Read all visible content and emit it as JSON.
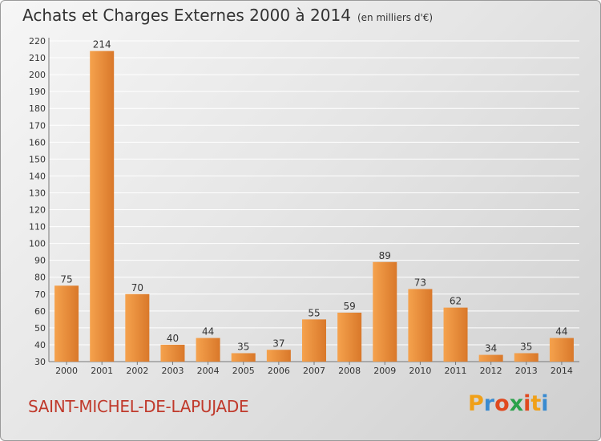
{
  "header": {
    "title": "Achats et Charges Externes 2000 à 2014",
    "subtitle": "(en milliers d'€)"
  },
  "footer": {
    "place": "SAINT-MICHEL-DE-LAPUJADE",
    "logo": {
      "letters": [
        "P",
        "r",
        "o",
        "x",
        "i",
        "t",
        "i"
      ],
      "colors": [
        "#f0a018",
        "#3a8bd0",
        "#e0481e",
        "#2aa24a",
        "#e0481e",
        "#f0a018",
        "#3a8bd0"
      ]
    }
  },
  "colors": {
    "bar_light": "#f5a24d",
    "bar_dark": "#d9782a",
    "place_text": "#c0392b"
  },
  "chart_data": {
    "type": "bar",
    "title": "Achats et Charges Externes 2000 à 2014",
    "subtitle": "(en milliers d'€)",
    "categories": [
      "2000",
      "2001",
      "2002",
      "2003",
      "2004",
      "2005",
      "2006",
      "2007",
      "2008",
      "2009",
      "2010",
      "2011",
      "2012",
      "2013",
      "2014"
    ],
    "values": [
      75,
      214,
      70,
      40,
      44,
      35,
      37,
      55,
      59,
      89,
      73,
      62,
      34,
      35,
      44
    ],
    "ylim": [
      30,
      220
    ],
    "yticks": [
      30,
      40,
      50,
      60,
      70,
      80,
      90,
      100,
      110,
      120,
      130,
      140,
      150,
      160,
      170,
      180,
      190,
      200,
      210,
      220
    ],
    "grid": true,
    "data_labels": true,
    "xlabel": "",
    "ylabel": ""
  }
}
